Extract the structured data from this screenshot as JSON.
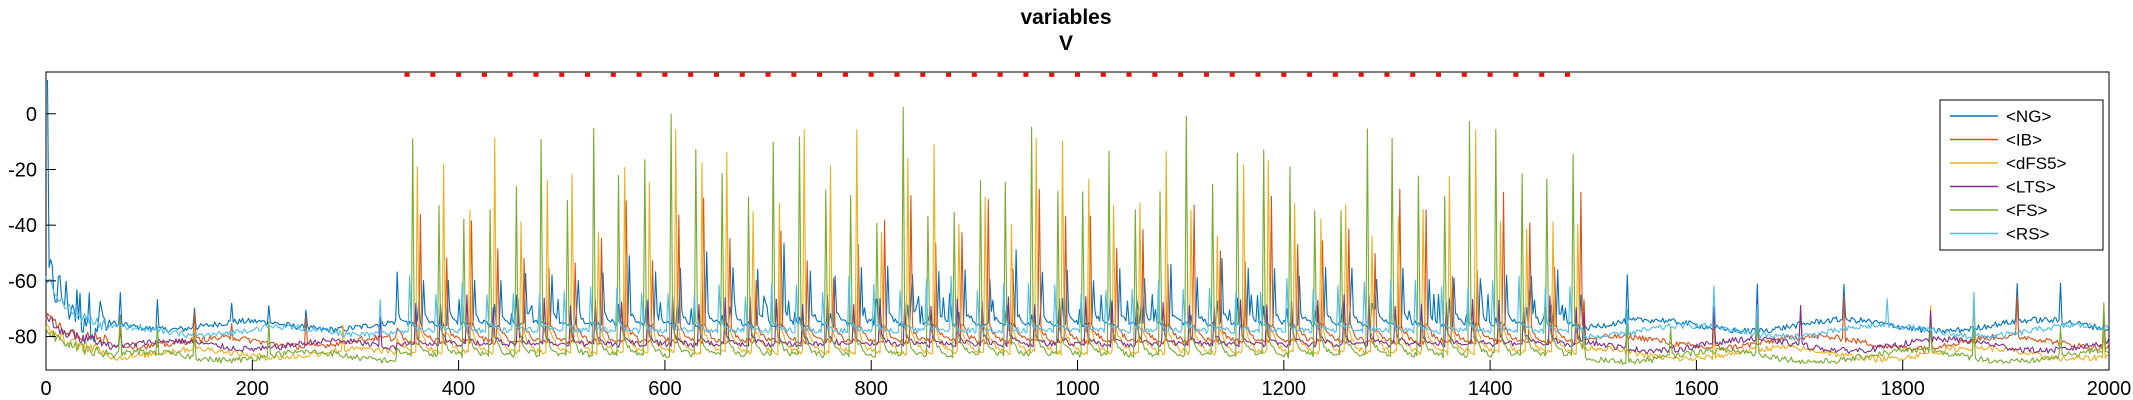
{
  "chart_data": {
    "type": "line",
    "title": "variables",
    "subtitle": "V",
    "xlabel": "",
    "ylabel": "",
    "xlim": [
      0,
      2000
    ],
    "ylim": [
      -92,
      15
    ],
    "xticks": [
      "0",
      "200",
      "400",
      "600",
      "800",
      "1000",
      "1200",
      "1400",
      "1600",
      "1800",
      "2000"
    ],
    "yticks": [
      "0",
      "-20",
      "-40",
      "-60",
      "-80"
    ],
    "xtick_values": [
      0,
      200,
      400,
      600,
      800,
      1000,
      1200,
      1400,
      1600,
      1800,
      2000
    ],
    "ytick_values": [
      0,
      -20,
      -40,
      -60,
      -80
    ],
    "grid": false,
    "legend_position": "top-right",
    "stimulus_marker": {
      "color": "#ff0000",
      "start": 350,
      "end": 1480,
      "period": 25,
      "y": 14
    },
    "burst_window": {
      "start": 340,
      "end": 1490,
      "period": 25
    },
    "series": [
      {
        "name": "<NG>",
        "color": "#0072bd",
        "baseline": -76,
        "peak_low": -60,
        "peak_high": -55
      },
      {
        "name": "<IB>",
        "color": "#d95319",
        "baseline": -82,
        "peak_low": -60,
        "peak_high": -25
      },
      {
        "name": "<dFS5>",
        "color": "#edb120",
        "baseline": -86,
        "peak_low": -45,
        "peak_high": -5
      },
      {
        "name": "<LTS>",
        "color": "#7e2f8e",
        "baseline": -83,
        "peak_low": -70,
        "peak_high": -65
      },
      {
        "name": "<FS>",
        "color": "#77ac30",
        "baseline": -87,
        "peak_low": -40,
        "peak_high": 3
      },
      {
        "name": "<RS>",
        "color": "#4dbeee",
        "baseline": -78,
        "peak_low": -66,
        "peak_high": -58
      }
    ]
  }
}
